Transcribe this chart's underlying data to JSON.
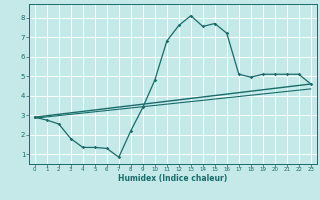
{
  "title": "",
  "xlabel": "Humidex (Indice chaleur)",
  "ylabel": "",
  "xlim": [
    -0.5,
    23.5
  ],
  "ylim": [
    0.5,
    8.7
  ],
  "xticks": [
    0,
    1,
    2,
    3,
    4,
    5,
    6,
    7,
    8,
    9,
    10,
    11,
    12,
    13,
    14,
    15,
    16,
    17,
    18,
    19,
    20,
    21,
    22,
    23
  ],
  "yticks": [
    1,
    2,
    3,
    4,
    5,
    6,
    7,
    8
  ],
  "bg_color": "#c5e8e8",
  "grid_color": "#ffffff",
  "line_color": "#1a6b6b",
  "curve1_x": [
    0,
    1,
    2,
    3,
    4,
    5,
    6,
    7,
    8,
    9,
    10,
    11,
    12,
    13,
    14,
    15,
    16,
    17,
    18,
    19,
    20,
    21,
    22,
    23
  ],
  "curve1_y": [
    2.9,
    2.75,
    2.55,
    1.8,
    1.35,
    1.35,
    1.3,
    0.85,
    2.2,
    3.4,
    4.8,
    6.8,
    7.6,
    8.1,
    7.55,
    7.7,
    7.2,
    5.1,
    4.95,
    5.1,
    5.1,
    5.1,
    5.1,
    4.6
  ],
  "curve2_x": [
    0,
    23
  ],
  "curve2_y": [
    2.9,
    4.6
  ],
  "curve3_x": [
    0,
    23
  ],
  "curve3_y": [
    2.85,
    4.35
  ]
}
